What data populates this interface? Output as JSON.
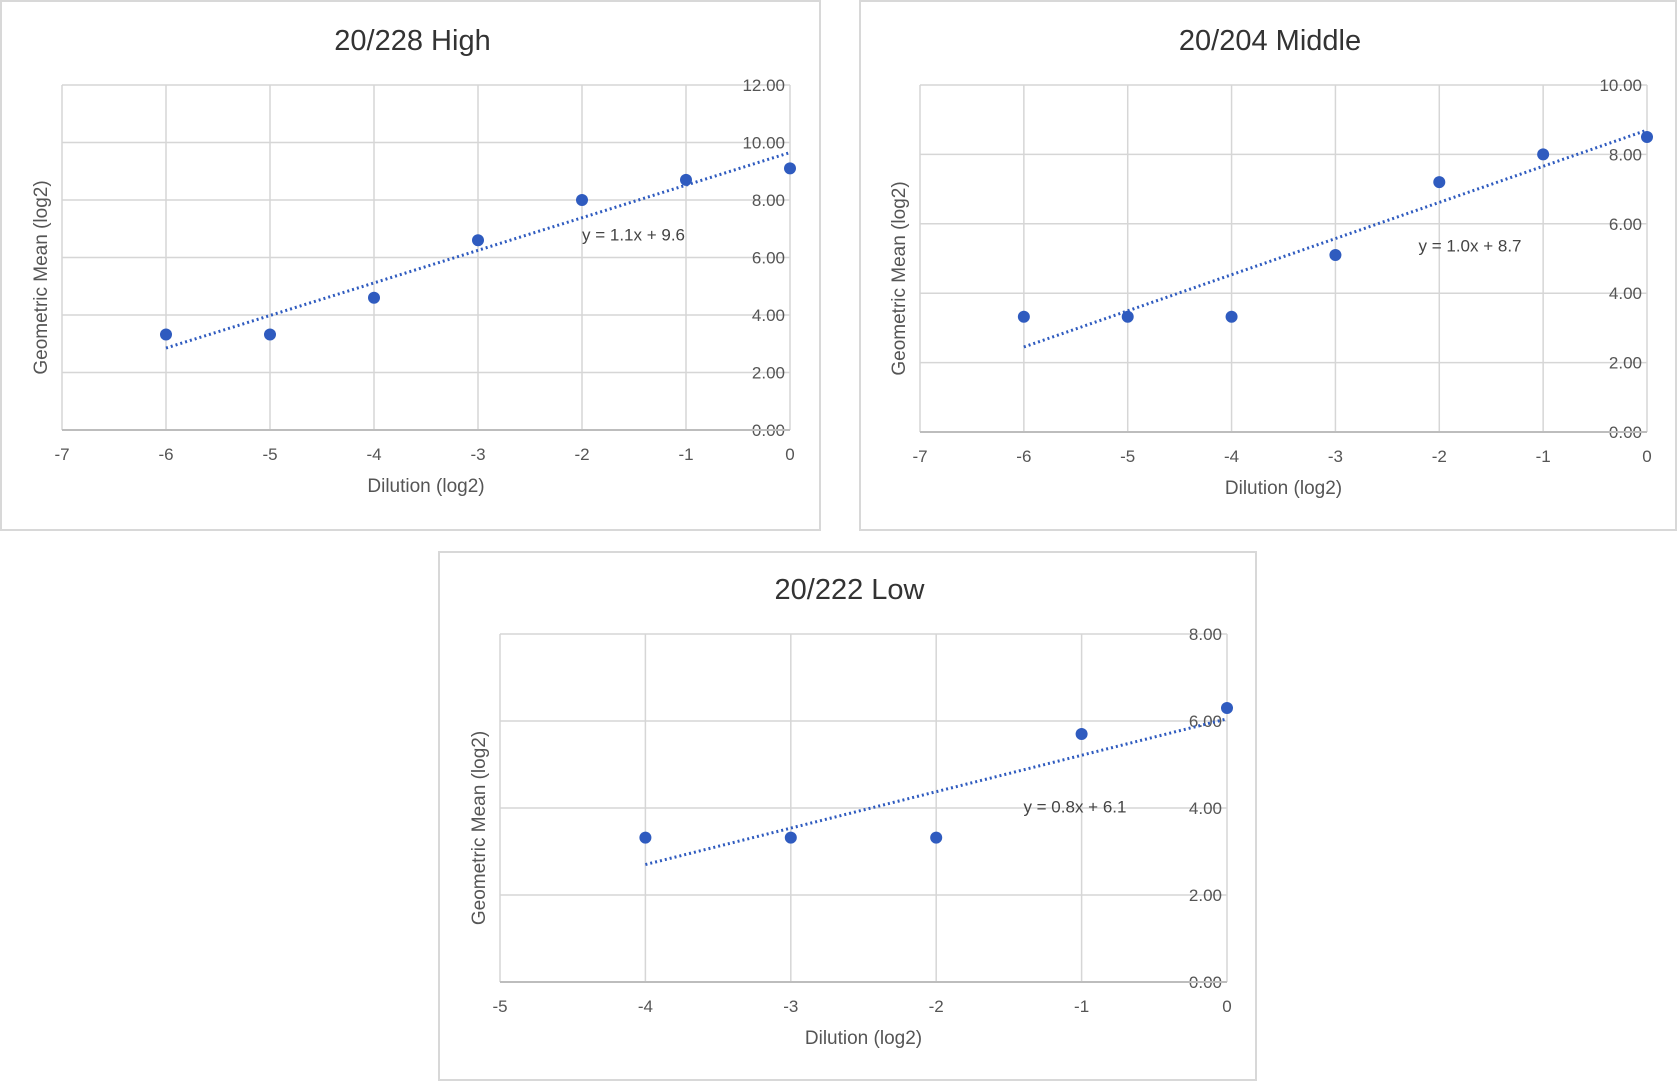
{
  "chart_data": [
    {
      "type": "scatter",
      "title": "20/228 High",
      "xlabel": "Dilution (log2)",
      "ylabel": "Geometric Mean (log2)",
      "xlim": [
        -7,
        0
      ],
      "ylim": [
        0,
        12
      ],
      "x_ticks": [
        "-7",
        "-6",
        "-5",
        "-4",
        "-3",
        "-2",
        "-1",
        "0"
      ],
      "y_ticks": [
        "0.00",
        "2.00",
        "4.00",
        "6.00",
        "8.00",
        "10.00",
        "12.00"
      ],
      "grid": true,
      "x": [
        -6,
        -5,
        -4,
        -3,
        -2,
        -1,
        0
      ],
      "y": [
        3.32,
        3.32,
        4.6,
        6.6,
        8.0,
        8.7,
        9.1
      ],
      "trendline": {
        "equation": "y = 1.1x + 9.6",
        "x": [
          -6,
          0
        ],
        "y": [
          2.85,
          9.65
        ]
      },
      "color": "#2f5bbf"
    },
    {
      "type": "scatter",
      "title": "20/204 Middle",
      "xlabel": "Dilution (log2)",
      "ylabel": "Geometric Mean (log2)",
      "xlim": [
        -7,
        0
      ],
      "ylim": [
        0,
        10
      ],
      "x_ticks": [
        "-7",
        "-6",
        "-5",
        "-4",
        "-3",
        "-2",
        "-1",
        "0"
      ],
      "y_ticks": [
        "0.00",
        "2.00",
        "4.00",
        "6.00",
        "8.00",
        "10.00"
      ],
      "grid": true,
      "x": [
        -6,
        -5,
        -4,
        -3,
        -2,
        -1,
        0
      ],
      "y": [
        3.32,
        3.32,
        3.32,
        5.1,
        7.2,
        8.0,
        8.5
      ],
      "trendline": {
        "equation": "y = 1.0x + 8.7",
        "x": [
          -6,
          0
        ],
        "y": [
          2.45,
          8.7
        ]
      },
      "color": "#2f5bbf"
    },
    {
      "type": "scatter",
      "title": "20/222 Low",
      "xlabel": "Dilution (log2)",
      "ylabel": "Geometric Mean (log2)",
      "xlim": [
        -5,
        0
      ],
      "ylim": [
        0,
        8
      ],
      "x_ticks": [
        "-5",
        "-4",
        "-3",
        "-2",
        "-1",
        "0"
      ],
      "y_ticks": [
        "0.00",
        "2.00",
        "4.00",
        "6.00",
        "8.00"
      ],
      "grid": true,
      "x": [
        -4,
        -3,
        -2,
        -1,
        0
      ],
      "y": [
        3.32,
        3.32,
        3.32,
        5.7,
        6.3
      ],
      "trendline": {
        "equation": "y = 0.8x + 6.1",
        "x": [
          -4,
          0
        ],
        "y": [
          2.7,
          6.05
        ]
      },
      "color": "#2f5bbf"
    }
  ]
}
